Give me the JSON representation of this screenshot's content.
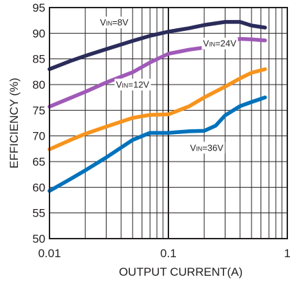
{
  "chart_data": {
    "type": "line",
    "title": "",
    "xlabel": "OUTPUT CURRENT(A)",
    "ylabel": "EFFICIENCY (%)",
    "x_scale": "log",
    "xlim": [
      0.01,
      1
    ],
    "ylim": [
      50,
      95
    ],
    "x_ticks": [
      0.01,
      0.1,
      1
    ],
    "x_tick_labels": [
      "0.01",
      "0.1",
      "1"
    ],
    "y_ticks": [
      50,
      55,
      60,
      65,
      70,
      75,
      80,
      85,
      90,
      95
    ],
    "y_tick_labels": [
      "50",
      "55",
      "60",
      "65",
      "70",
      "75",
      "80",
      "85",
      "90",
      "95"
    ],
    "grid": true,
    "series": [
      {
        "name": "VIN=8V",
        "label_sub": "IN",
        "label_prefix": "V",
        "label_suffix": "=8V",
        "color": "#2b2c5a",
        "points": [
          [
            0.01,
            83.0
          ],
          [
            0.015,
            84.6
          ],
          [
            0.02,
            85.6
          ],
          [
            0.03,
            86.9
          ],
          [
            0.05,
            88.5
          ],
          [
            0.07,
            89.5
          ],
          [
            0.1,
            90.3
          ],
          [
            0.15,
            91.0
          ],
          [
            0.2,
            91.6
          ],
          [
            0.3,
            92.2
          ],
          [
            0.4,
            92.2
          ],
          [
            0.5,
            91.5
          ],
          [
            0.65,
            91.1
          ]
        ]
      },
      {
        "name": "VIN=12V",
        "label_sub": "IN",
        "label_prefix": "V",
        "label_suffix": "=12V",
        "color": "#a05ab8",
        "points": [
          [
            0.01,
            75.7
          ],
          [
            0.015,
            77.4
          ],
          [
            0.02,
            78.6
          ],
          [
            0.03,
            80.4
          ],
          [
            0.05,
            82.4
          ],
          [
            0.07,
            84.3
          ],
          [
            0.1,
            86.0
          ],
          [
            0.15,
            86.8
          ],
          [
            0.2,
            87.2
          ],
          [
            0.3,
            88.3
          ],
          [
            0.4,
            88.9
          ],
          [
            0.5,
            88.8
          ],
          [
            0.65,
            88.6
          ]
        ]
      },
      {
        "name": "VIN=24V",
        "label_sub": "IN",
        "label_prefix": "V",
        "label_suffix": "=24V",
        "color": "#f7941d",
        "points": [
          [
            0.01,
            67.4
          ],
          [
            0.015,
            69.2
          ],
          [
            0.02,
            70.4
          ],
          [
            0.03,
            71.8
          ],
          [
            0.05,
            73.5
          ],
          [
            0.07,
            74.1
          ],
          [
            0.1,
            74.2
          ],
          [
            0.15,
            75.8
          ],
          [
            0.2,
            77.5
          ],
          [
            0.3,
            79.6
          ],
          [
            0.4,
            81.2
          ],
          [
            0.5,
            82.3
          ],
          [
            0.65,
            83.0
          ]
        ]
      },
      {
        "name": "VIN=36V",
        "label_sub": "IN",
        "label_prefix": "V",
        "label_suffix": "=36V",
        "color": "#0072bc",
        "points": [
          [
            0.01,
            59.3
          ],
          [
            0.015,
            61.6
          ],
          [
            0.02,
            63.3
          ],
          [
            0.03,
            65.8
          ],
          [
            0.05,
            69.2
          ],
          [
            0.07,
            70.6
          ],
          [
            0.1,
            70.6
          ],
          [
            0.15,
            70.9
          ],
          [
            0.2,
            71.0
          ],
          [
            0.25,
            72.0
          ],
          [
            0.3,
            74.0
          ],
          [
            0.4,
            75.8
          ],
          [
            0.5,
            76.6
          ],
          [
            0.65,
            77.5
          ]
        ]
      }
    ],
    "annotations": [
      {
        "series": 0,
        "at": [
          0.035,
          91.5
        ]
      },
      {
        "series": 1,
        "at": [
          0.05,
          79.4
        ]
      },
      {
        "series": 2,
        "at": [
          0.27,
          87.4
        ]
      },
      {
        "series": 3,
        "at": [
          0.21,
          67.1
        ]
      }
    ]
  }
}
